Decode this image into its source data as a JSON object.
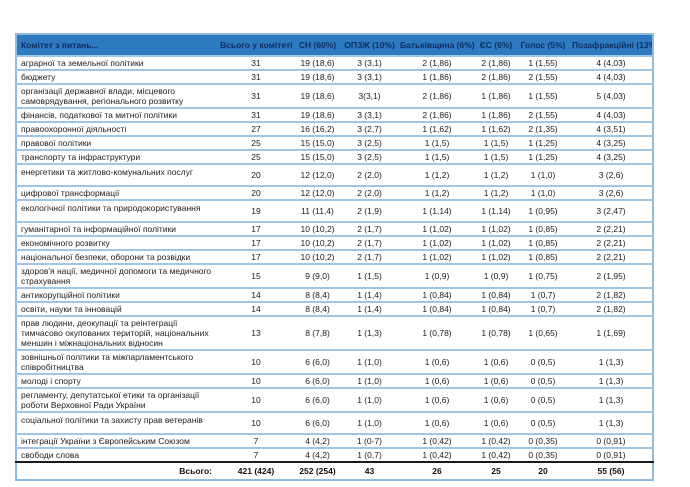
{
  "colors": {
    "header_bg": "#2e7ac1",
    "header_text": "#0c2f5f",
    "row_border": "#9dc6e8",
    "outer_border": "#8fbce0",
    "total_rule": "#1a1a1a"
  },
  "table": {
    "header": {
      "committee": "Комітет з питань...",
      "columns": [
        "Всього у комітеті",
        "СН (60%)",
        "ОПЗЖ (10%)",
        "Батьківщина (6%)",
        "ЄС (6%)",
        "Голос (5%)",
        "Позафракційні (13%)"
      ]
    },
    "rows": [
      {
        "committee": "аграрної та земельної політики",
        "values": [
          "31",
          "19 (18,6)",
          "3 (3,1)",
          "2 (1,86)",
          "2 (1,86)",
          "1 (1,55)",
          "4 (4,03)"
        ],
        "tall": false
      },
      {
        "committee": "бюджету",
        "values": [
          "31",
          "19 (18,6)",
          "3 (3,1)",
          "1 (1,86)",
          "2 (1,86)",
          "2 (1,55)",
          "4 (4,03)"
        ],
        "tall": false
      },
      {
        "committee": "організації державної влади, місцевого самоврядування, регіонального розвитку",
        "values": [
          "31",
          "19 (18,6)",
          "3(3,1)",
          "2 (1,86)",
          "1 (1,86)",
          "1 (1,55)",
          "5 (4,03)"
        ],
        "tall": false
      },
      {
        "committee": "фінансів, податкової та митної політики",
        "values": [
          "31",
          "19 (18,6)",
          "3 (3,1)",
          "2 (1,86)",
          "1 (1,86)",
          "2 (1,55)",
          "4 (4,03)"
        ],
        "tall": false
      },
      {
        "committee": "правоохоронної діяльності",
        "values": [
          "27",
          "16 (16,2)",
          "3 (2,7)",
          "1 (1,62)",
          "1 (1,62)",
          "2 (1,35)",
          "4 (3,51)"
        ],
        "tall": false
      },
      {
        "committee": "правової політики",
        "values": [
          "25",
          "15 (15,0)",
          "3 (2,5)",
          "1 (1,5)",
          "1 (1,5)",
          "1 (1,25)",
          "4 (3,25)"
        ],
        "tall": false
      },
      {
        "committee": "транспорту та інфраструктури",
        "values": [
          "25",
          "15 (15,0)",
          "3 (2,5)",
          "1 (1,5)",
          "1 (1,5)",
          "1 (1,25)",
          "4 (3,25)"
        ],
        "tall": false
      },
      {
        "committee": "енергетики та житлово-комунальних послуг",
        "values": [
          "20",
          "12 (12,0)",
          "2 (2,0)",
          "1 (1,2)",
          "1 (1,2)",
          "1 (1,0)",
          "3 (2,6)"
        ],
        "tall": true
      },
      {
        "committee": "цифрової трансформації",
        "values": [
          "20",
          "12 (12,0)",
          "2 (2,0)",
          "1 (1,2)",
          "1 (1,2)",
          "1 (1,0)",
          "3 (2,6)"
        ],
        "tall": false
      },
      {
        "committee": "екологічної політики та природокористування",
        "values": [
          "19",
          "11 (11,4)",
          "2 (1,9)",
          "1 (1,14)",
          "1 (1,14)",
          "1 (0,95)",
          "3 (2,47)"
        ],
        "tall": true
      },
      {
        "committee": "гуманітарної та інформаційної політики",
        "values": [
          "17",
          "10 (10,2)",
          "2 (1,7)",
          "1 (1,02)",
          "1 (1,02)",
          "1 (0,85)",
          "2 (2,21)"
        ],
        "tall": false
      },
      {
        "committee": "економічного розвитку",
        "values": [
          "17",
          "10 (10,2)",
          "2 (1,7)",
          "1 (1,02)",
          "1 (1,02)",
          "1 (0,85)",
          "2 (2,21)"
        ],
        "tall": false
      },
      {
        "committee": "національної безпеки, оборони та розвідки",
        "values": [
          "17",
          "10 (10,2)",
          "2 (1,7)",
          "1 (1,02)",
          "1 (1,02)",
          "1 (0,85)",
          "2 (2,21)"
        ],
        "tall": false
      },
      {
        "committee": "здоров'я нації, медичної допомоги та медичного страхування",
        "values": [
          "15",
          "9 (9,0)",
          "1 (1,5)",
          "1 (0,9)",
          "1 (0,9)",
          "1 (0,75)",
          "2 (1,95)"
        ],
        "tall": false
      },
      {
        "committee": "антикорупційної політики",
        "values": [
          "14",
          "8 (8,4)",
          "1 (1,4)",
          "1 (0,84)",
          "1 (0,84)",
          "1 (0,7)",
          "2 (1,82)"
        ],
        "tall": false
      },
      {
        "committee": "освіти, науки та інновацій",
        "values": [
          "14",
          "8 (8,4)",
          "1 (1,4)",
          "1 (0,84)",
          "1 (0,84)",
          "1 (0,7)",
          "2 (1,82)"
        ],
        "tall": false
      },
      {
        "committee": "прав людини, деокупації та реінтеграції тимчасово окупованих територій, національних меншин і міжнаціональних відносин",
        "values": [
          "13",
          "8 (7,8)",
          "1 (1,3)",
          "1 (0,78)",
          "1 (0,78)",
          "1 (0,65)",
          "1 (1,69)"
        ],
        "tall": false
      },
      {
        "committee": "зовнішньої політики та міжпарламентського співробітництва",
        "values": [
          "10",
          "6 (6,0)",
          "1 (1,0)",
          "1 (0,6)",
          "1 (0,6)",
          "0 (0,5)",
          "1 (1,3)"
        ],
        "tall": false
      },
      {
        "committee": "молоді і спорту",
        "values": [
          "10",
          "6 (6,0)",
          "1 (1,0)",
          "1 (0,6)",
          "1 (0,6)",
          "0 (0,5)",
          "1 (1,3)"
        ],
        "tall": false
      },
      {
        "committee": "регламенту, депутатської етики та організації роботи Верховної Ради України",
        "values": [
          "10",
          "6 (6,0)",
          "1 (1,0)",
          "1 (0,6)",
          "1 (0,6)",
          "0 (0,5)",
          "1 (1,3)"
        ],
        "tall": false
      },
      {
        "committee": "соціальної політики та захисту прав ветеранів",
        "values": [
          "10",
          "6 (6,0)",
          "1 (1,0)",
          "1 (0,6)",
          "1 (0,6)",
          "0 (0,5)",
          "1 (1,3)"
        ],
        "tall": true
      },
      {
        "committee": "інтеграції України з Європейським Союзом",
        "values": [
          "7",
          "4 (4,2)",
          "1 (0-7)",
          "1 (0,42)",
          "1 (0,42)",
          "0 (0,35)",
          "0 (0,91)"
        ],
        "tall": false
      },
      {
        "committee": "свободи слова",
        "values": [
          "7",
          "4 (4,2)",
          "1 (0,7)",
          "1 (0,42)",
          "1 (0,42)",
          "0 (0,35)",
          "0 (0,91)"
        ],
        "tall": false
      }
    ],
    "totals": {
      "label": "Всього:",
      "values": [
        "421 (424)",
        "252 (254)",
        "43",
        "26",
        "25",
        "20",
        "55 (56)"
      ]
    }
  }
}
